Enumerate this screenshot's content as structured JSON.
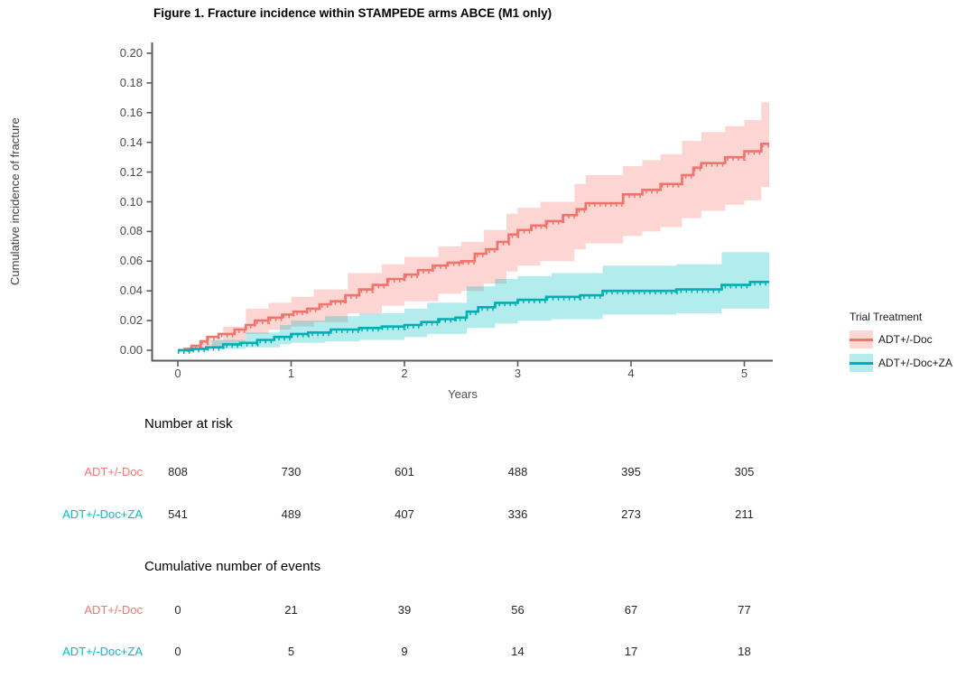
{
  "chart_data": {
    "type": "line",
    "subtype": "cumulative-incidence-step-curves-with-ci-ribbons",
    "title": "Figure 1. Fracture incidence within STAMPEDE arms ABCE (M1 only)",
    "xlabel": "Years",
    "ylabel": "Cumulative incidence of fracture",
    "xlim": [
      -0.25,
      5.45
    ],
    "ylim": [
      0,
      0.2
    ],
    "xticks": [
      0,
      1,
      2,
      3,
      4,
      5
    ],
    "ytick_values": [
      0,
      0.02,
      0.04,
      0.06,
      0.08,
      0.1,
      0.12,
      0.14,
      0.16,
      0.18,
      0.2
    ],
    "ytick_labels": [
      "0.00",
      "0.02",
      "0.04",
      "0.06",
      "0.08",
      "0.10",
      "0.12",
      "0.14",
      "0.16",
      "0.18",
      "0.20"
    ],
    "grid": false,
    "legend": {
      "title": "Trial Treatment",
      "position": "right",
      "entries": [
        {
          "label": "ADT+/-Doc",
          "line_color": "#F1746C",
          "fill_color": "#FDD7D3"
        },
        {
          "label": "ADT+/-Doc+ZA",
          "line_color": "#00AFB5",
          "fill_color": "#B2ECED"
        }
      ]
    },
    "series": [
      {
        "name": "ADT+/-Doc",
        "line_color": "#F1746C",
        "ribbon_color": "#F8766D",
        "points": [
          [
            0,
            0
          ],
          [
            0.06,
            0.001
          ],
          [
            0.12,
            0.003
          ],
          [
            0.2,
            0.006
          ],
          [
            0.26,
            0.009
          ],
          [
            0.36,
            0.011
          ],
          [
            0.5,
            0.014
          ],
          [
            0.6,
            0.017
          ],
          [
            0.68,
            0.02
          ],
          [
            0.8,
            0.022
          ],
          [
            0.92,
            0.024
          ],
          [
            1.02,
            0.026
          ],
          [
            1.14,
            0.028
          ],
          [
            1.25,
            0.031
          ],
          [
            1.35,
            0.033
          ],
          [
            1.48,
            0.037
          ],
          [
            1.6,
            0.041
          ],
          [
            1.72,
            0.044
          ],
          [
            1.85,
            0.048
          ],
          [
            2.0,
            0.051
          ],
          [
            2.12,
            0.054
          ],
          [
            2.25,
            0.057
          ],
          [
            2.38,
            0.059
          ],
          [
            2.5,
            0.06
          ],
          [
            2.62,
            0.065
          ],
          [
            2.72,
            0.068
          ],
          [
            2.82,
            0.073
          ],
          [
            2.92,
            0.078
          ],
          [
            3.0,
            0.081
          ],
          [
            3.12,
            0.084
          ],
          [
            3.25,
            0.087
          ],
          [
            3.4,
            0.091
          ],
          [
            3.52,
            0.095
          ],
          [
            3.6,
            0.099
          ],
          [
            3.93,
            0.105
          ],
          [
            4.1,
            0.108
          ],
          [
            4.26,
            0.112
          ],
          [
            4.45,
            0.118
          ],
          [
            4.55,
            0.123
          ],
          [
            4.62,
            0.126
          ],
          [
            4.83,
            0.13
          ],
          [
            5.0,
            0.134
          ],
          [
            5.15,
            0.139
          ],
          [
            5.22,
            0.139
          ]
        ],
        "upper": [
          [
            0,
            0.001
          ],
          [
            0.2,
            0.007
          ],
          [
            0.4,
            0.016
          ],
          [
            0.6,
            0.028
          ],
          [
            0.8,
            0.032
          ],
          [
            1.0,
            0.036
          ],
          [
            1.2,
            0.041
          ],
          [
            1.5,
            0.052
          ],
          [
            1.8,
            0.058
          ],
          [
            2.0,
            0.063
          ],
          [
            2.3,
            0.07
          ],
          [
            2.5,
            0.073
          ],
          [
            2.7,
            0.081
          ],
          [
            2.9,
            0.092
          ],
          [
            3.0,
            0.096
          ],
          [
            3.2,
            0.1
          ],
          [
            3.5,
            0.112
          ],
          [
            3.6,
            0.118
          ],
          [
            3.93,
            0.124
          ],
          [
            4.1,
            0.128
          ],
          [
            4.26,
            0.132
          ],
          [
            4.45,
            0.141
          ],
          [
            4.62,
            0.147
          ],
          [
            4.83,
            0.151
          ],
          [
            5.0,
            0.155
          ],
          [
            5.15,
            0.167
          ],
          [
            5.22,
            0.167
          ]
        ],
        "lower": [
          [
            0,
            0
          ],
          [
            0.2,
            0.001
          ],
          [
            0.4,
            0.004
          ],
          [
            0.6,
            0.011
          ],
          [
            0.8,
            0.014
          ],
          [
            1.0,
            0.016
          ],
          [
            1.2,
            0.019
          ],
          [
            1.5,
            0.025
          ],
          [
            1.8,
            0.03
          ],
          [
            2.0,
            0.033
          ],
          [
            2.3,
            0.038
          ],
          [
            2.5,
            0.04
          ],
          [
            2.7,
            0.045
          ],
          [
            2.9,
            0.053
          ],
          [
            3.0,
            0.057
          ],
          [
            3.2,
            0.06
          ],
          [
            3.5,
            0.068
          ],
          [
            3.6,
            0.072
          ],
          [
            3.93,
            0.077
          ],
          [
            4.1,
            0.08
          ],
          [
            4.26,
            0.083
          ],
          [
            4.45,
            0.089
          ],
          [
            4.62,
            0.094
          ],
          [
            4.83,
            0.098
          ],
          [
            5.0,
            0.101
          ],
          [
            5.15,
            0.11
          ],
          [
            5.22,
            0.11
          ]
        ]
      },
      {
        "name": "ADT+/-Doc+ZA",
        "line_color": "#00AFB5",
        "ribbon_color": "#00BFC4",
        "points": [
          [
            0,
            0
          ],
          [
            0.12,
            0.001
          ],
          [
            0.25,
            0.002
          ],
          [
            0.4,
            0.004
          ],
          [
            0.55,
            0.005
          ],
          [
            0.7,
            0.007
          ],
          [
            0.85,
            0.009
          ],
          [
            1.0,
            0.011
          ],
          [
            1.15,
            0.012
          ],
          [
            1.35,
            0.014
          ],
          [
            1.6,
            0.015
          ],
          [
            1.8,
            0.016
          ],
          [
            2.0,
            0.017
          ],
          [
            2.15,
            0.019
          ],
          [
            2.3,
            0.021
          ],
          [
            2.45,
            0.022
          ],
          [
            2.55,
            0.026
          ],
          [
            2.65,
            0.029
          ],
          [
            2.8,
            0.032
          ],
          [
            3.0,
            0.034
          ],
          [
            3.25,
            0.036
          ],
          [
            3.55,
            0.037
          ],
          [
            3.75,
            0.04
          ],
          [
            4.4,
            0.041
          ],
          [
            4.8,
            0.044
          ],
          [
            5.05,
            0.046
          ],
          [
            5.22,
            0.046
          ]
        ],
        "upper": [
          [
            0,
            0.001
          ],
          [
            0.3,
            0.007
          ],
          [
            0.6,
            0.012
          ],
          [
            0.9,
            0.017
          ],
          [
            1.0,
            0.02
          ],
          [
            1.3,
            0.023
          ],
          [
            1.6,
            0.025
          ],
          [
            2.0,
            0.028
          ],
          [
            2.2,
            0.032
          ],
          [
            2.55,
            0.043
          ],
          [
            2.8,
            0.048
          ],
          [
            3.0,
            0.05
          ],
          [
            3.3,
            0.052
          ],
          [
            3.75,
            0.057
          ],
          [
            4.4,
            0.058
          ],
          [
            4.8,
            0.066
          ],
          [
            5.22,
            0.066
          ]
        ],
        "lower": [
          [
            0,
            0
          ],
          [
            0.3,
            0.001
          ],
          [
            0.6,
            0.002
          ],
          [
            0.9,
            0.004
          ],
          [
            1.0,
            0.005
          ],
          [
            1.3,
            0.006
          ],
          [
            1.6,
            0.007
          ],
          [
            2.0,
            0.009
          ],
          [
            2.2,
            0.011
          ],
          [
            2.55,
            0.015
          ],
          [
            2.8,
            0.018
          ],
          [
            3.0,
            0.02
          ],
          [
            3.3,
            0.021
          ],
          [
            3.75,
            0.024
          ],
          [
            4.4,
            0.025
          ],
          [
            4.8,
            0.028
          ],
          [
            5.22,
            0.028
          ]
        ]
      }
    ]
  },
  "risk_table": {
    "heading": "Number at risk",
    "rows": [
      {
        "label": "ADT+/-Doc",
        "color": "#F8766D",
        "values": [
          "808",
          "730",
          "601",
          "488",
          "395",
          "305"
        ]
      },
      {
        "label": "ADT+/-Doc+ZA",
        "color": "#00BFC4",
        "values": [
          "541",
          "489",
          "407",
          "336",
          "273",
          "211"
        ]
      }
    ]
  },
  "events_table": {
    "heading": "Cumulative number of events",
    "rows": [
      {
        "label": "ADT+/-Doc",
        "color": "#F8766D",
        "values": [
          "0",
          "21",
          "39",
          "56",
          "67",
          "77"
        ]
      },
      {
        "label": "ADT+/-Doc+ZA",
        "color": "#00BFC4",
        "values": [
          "0",
          "5",
          "9",
          "14",
          "17",
          "18"
        ]
      }
    ]
  },
  "style": {
    "axis_color": "#5a5a5a",
    "tick_label_color": "#4d4d4d",
    "ribbon_opacity": 0.3
  }
}
